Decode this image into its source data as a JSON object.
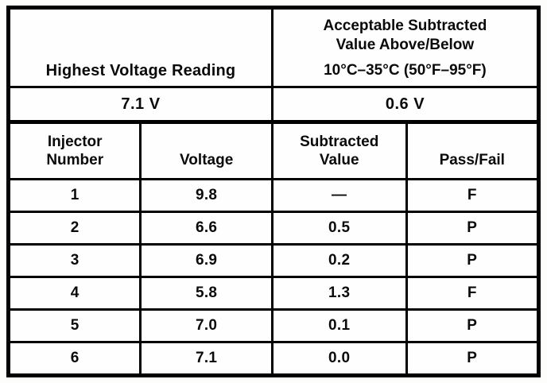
{
  "top": {
    "left_header": "Highest Voltage Reading",
    "right_header": {
      "line1": "Acceptable Subtracted",
      "line2": "Value Above/Below",
      "line3": "10°C–35°C (50°F–95°F)"
    },
    "left_value": "7.1 V",
    "right_value": "0.6 V"
  },
  "table": {
    "header_lines": [
      [
        "Injector",
        "Number"
      ],
      [
        "Voltage"
      ],
      [
        "Subtracted",
        "Value"
      ],
      [
        "Pass/Fail"
      ]
    ],
    "rows": [
      [
        "1",
        "9.8",
        "—",
        "F"
      ],
      [
        "2",
        "6.6",
        "0.5",
        "P"
      ],
      [
        "3",
        "6.9",
        "0.2",
        "P"
      ],
      [
        "4",
        "5.8",
        "1.3",
        "F"
      ],
      [
        "5",
        "7.0",
        "0.1",
        "P"
      ],
      [
        "6",
        "7.1",
        "0.0",
        "P"
      ]
    ]
  }
}
